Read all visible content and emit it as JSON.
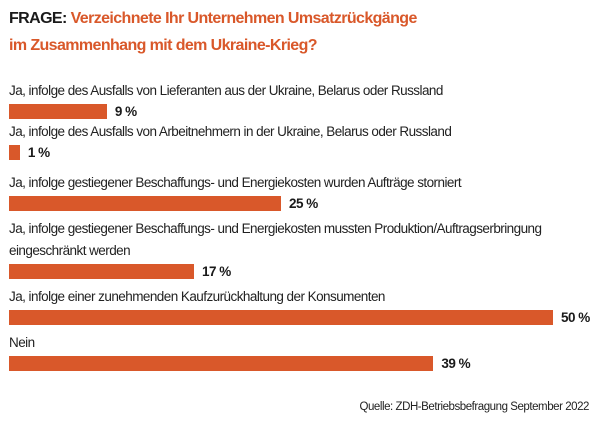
{
  "chart_data": {
    "type": "bar",
    "orientation": "horizontal",
    "title_prefix": "FRAGE:",
    "title": "Verzeichnete Ihr Unternehmen Umsatzrückgänge im Zusammenhang mit dem Ukraine-Krieg?",
    "title_line1": "Verzeichnete Ihr Unternehmen Umsatzrückgänge",
    "title_line2": "im Zusammenhang mit dem Ukraine-Krieg?",
    "categories": [
      [
        "Ja, infolge des Ausfalls von Lieferanten aus der Ukraine, Belarus oder Russland"
      ],
      [
        "Ja, infolge des Ausfalls von Arbeitnehmern in der Ukraine, Belarus oder Russland"
      ],
      [
        "Ja, infolge gestiegener Beschaffungs- und Energiekosten wurden Aufträge storniert"
      ],
      [
        "Ja, infolge gestiegener Beschaffungs- und Energiekosten mussten Produktion/Auftragserbringung",
        "eingeschränkt werden"
      ],
      [
        "Ja, infolge einer zunehmenden Kaufzurückhaltung der Konsumenten"
      ],
      [
        "Nein"
      ]
    ],
    "values": [
      9,
      1,
      25,
      17,
      50,
      39
    ],
    "value_labels": [
      "9 %",
      "1 %",
      "25 %",
      "17 %",
      "50 %",
      "39 %"
    ],
    "unit": "%",
    "xlim": [
      0,
      50
    ],
    "grid": false,
    "bar_color": "#d9582a",
    "title_color": "#d9582a",
    "source": "Quelle: ZDH-Betriebsbefragung September 2022"
  }
}
